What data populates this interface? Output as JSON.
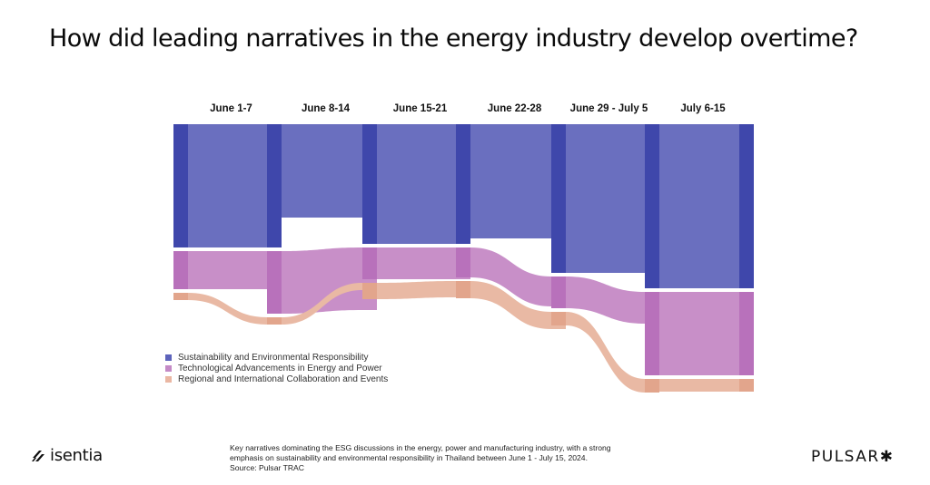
{
  "title": "How did leading narratives in the energy industry develop overtime?",
  "chart_data": {
    "type": "sankey-stream",
    "title": "How did leading narratives in the energy industry develop overtime?",
    "periods": [
      "June 1-7",
      "June 8-14",
      "June 15-21",
      "June 22-28",
      "June 29 - July 5",
      "July 6-15"
    ],
    "series": [
      {
        "name": "Sustainability and Environmental Responsibility",
        "color": "#6a6fbf",
        "node_color": "#3f47ab",
        "band_values": [
          136,
          103,
          132,
          126,
          164,
          181
        ],
        "node_values": [
          136,
          136,
          132,
          132,
          164,
          181,
          181
        ]
      },
      {
        "name": "Technological Advancements in Energy and Power",
        "color": "#c88fc8",
        "node_color": "#b871bb",
        "band_values": [
          42,
          69,
          35,
          33,
          35,
          92
        ],
        "node_values": [
          42,
          69,
          35,
          33,
          35,
          92,
          92
        ]
      },
      {
        "name": "Regional and International Collaboration and Events",
        "color": "#e9b9a4",
        "node_color": "#e2a58c",
        "band_values": [
          8,
          8,
          18,
          19,
          15,
          14
        ],
        "node_values": [
          8,
          8,
          18,
          19,
          15,
          15,
          14
        ]
      }
    ],
    "band_offsets": [
      [
        0,
        140,
        186
      ],
      [
        0,
        140,
        213
      ],
      [
        0,
        136,
        210
      ],
      [
        0,
        136,
        174
      ],
      [
        0,
        167,
        206
      ],
      [
        0,
        185,
        281
      ]
    ],
    "legend_position": "bottom-left",
    "units": "relative conversation volume"
  },
  "legend": [
    {
      "label": "Sustainability and Environmental Responsibility",
      "color": "#5d63bb"
    },
    {
      "label": "Technological Advancements in Energy and Power",
      "color": "#c48ac6"
    },
    {
      "label": "Regional and International Collaboration and Events",
      "color": "#eab7a3"
    }
  ],
  "footer": {
    "note_line1": "Key narratives dominating the ESG discussions in the energy, power and manufacturing industry, with a strong",
    "note_line2": "emphasis on sustainability and environmental responsibility in Thailand between June 1 - July 15, 2024.",
    "source": "Source: Pulsar TRAC",
    "brand_left": "isentia",
    "brand_right": "PULSAR",
    "brand_right_icon": "asterisk-icon"
  }
}
